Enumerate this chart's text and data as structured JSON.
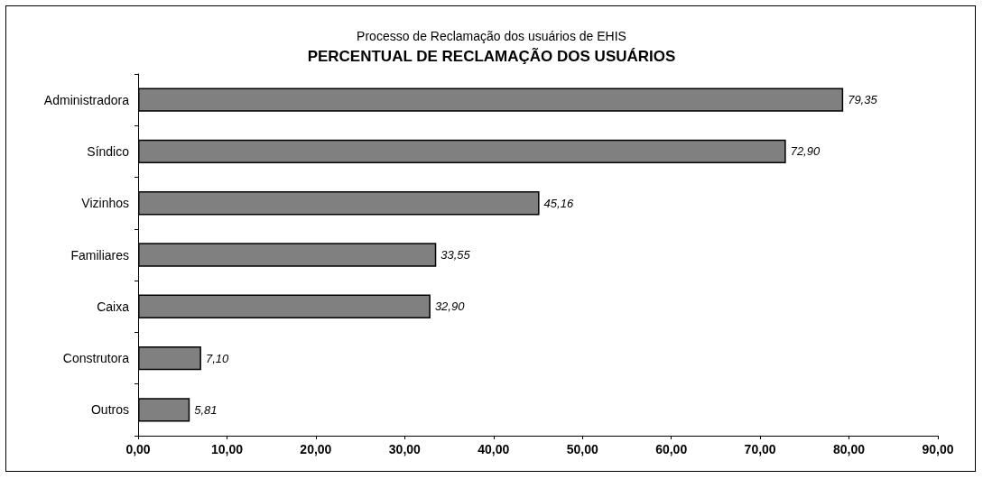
{
  "chart_data": {
    "type": "bar",
    "orientation": "horizontal",
    "title": "PERCENTUAL DE RECLAMAÇÃO DOS USUÁRIOS",
    "subtitle": "Processo de Reclamação dos usuários de EHIS",
    "categories": [
      "Administradora",
      "Síndico",
      "Vizinhos",
      "Familiares",
      "Caixa",
      "Construtora",
      "Outros"
    ],
    "values": [
      79.35,
      72.9,
      45.16,
      33.55,
      32.9,
      7.1,
      5.81
    ],
    "value_labels": [
      "79,35",
      "72,90",
      "45,16",
      "33,55",
      "32,90",
      "7,10",
      "5,81"
    ],
    "color": "#808080",
    "xlim": [
      0,
      90
    ],
    "xticks": [
      {
        "value": 0,
        "label": "0,00"
      },
      {
        "value": 10,
        "label": "10,00"
      },
      {
        "value": 20,
        "label": "20,00"
      },
      {
        "value": 30,
        "label": "30,00"
      },
      {
        "value": 40,
        "label": "40,00"
      },
      {
        "value": 50,
        "label": "50,00"
      },
      {
        "value": 60,
        "label": "60,00"
      },
      {
        "value": 70,
        "label": "70,00"
      },
      {
        "value": 80,
        "label": "80,00"
      },
      {
        "value": 90,
        "label": "90,00"
      }
    ],
    "grid": false
  }
}
